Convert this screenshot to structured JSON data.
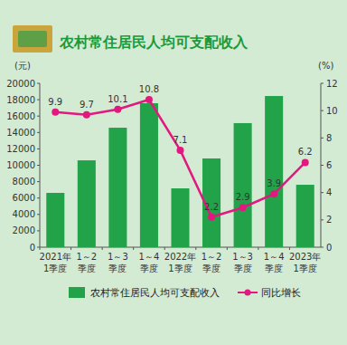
{
  "chart_data": {
    "type": "bar",
    "title": "农村常住居民人均可支配收入",
    "y_label": "(元)",
    "y2_label": "(%)",
    "categories": [
      "2021年\n1季度",
      "1～2\n季度",
      "1～3\n季度",
      "1～4\n季度",
      "2022年\n1季度",
      "1～2\n季度",
      "1～3\n季度",
      "1～4\n季度",
      "2023年\n1季度"
    ],
    "series": [
      {
        "name": "农村常住居民人均可支配收入",
        "type": "bar",
        "color": "#22a34a",
        "values": [
          6630,
          10600,
          14580,
          17570,
          7180,
          10830,
          15140,
          18450,
          7620
        ]
      },
      {
        "name": "同比增长",
        "type": "line",
        "axis": "y2",
        "color": "#e2177f",
        "marker": "circle",
        "line_style": "solid",
        "data_labels": true,
        "values": [
          9.9,
          9.7,
          10.1,
          10.8,
          7.1,
          2.2,
          2.9,
          3.9,
          6.2
        ]
      }
    ],
    "ylim": [
      0,
      20000
    ],
    "yticks": [
      0,
      2000,
      4000,
      6000,
      8000,
      10000,
      12000,
      14000,
      16000,
      18000,
      20000
    ],
    "y2lim": [
      0,
      12
    ],
    "y2ticks": [
      0,
      2,
      4,
      6,
      8,
      10,
      12
    ],
    "grid": false,
    "legend": "bottom"
  }
}
